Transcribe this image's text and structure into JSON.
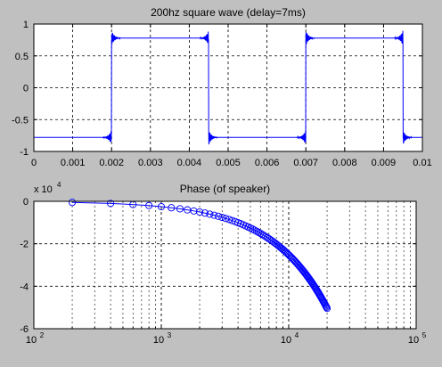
{
  "colors": {
    "figure_background": "#c0c0c0",
    "axes_background": "#ffffff",
    "line": "#0000ff",
    "axis": "#000000",
    "grid": "#000000"
  },
  "chart_data": [
    {
      "type": "line",
      "title": "200hz square wave (delay=7ms)",
      "xlabel": "",
      "ylabel": "",
      "xlim": [
        0,
        0.01
      ],
      "ylim": [
        -1,
        1
      ],
      "grid": true,
      "x_ticks": [
        "0",
        "0.001",
        "0.002",
        "0.003",
        "0.004",
        "0.005",
        "0.006",
        "0.007",
        "0.008",
        "0.009",
        "0.01"
      ],
      "y_ticks": [
        "1",
        "0.5",
        "0",
        "-0.5",
        "-1"
      ],
      "series": [
        {
          "x": [
            0,
            0.00195,
            0.00203,
            0.00445,
            0.00455,
            0.00695,
            0.00703,
            0.00945,
            0.00955,
            0.01
          ],
          "y": [
            -0.78,
            -0.78,
            0.78,
            0.78,
            -0.78,
            -0.78,
            0.78,
            0.78,
            -0.78,
            -0.78
          ],
          "edge_ringing_amplitude": 0.12
        }
      ]
    },
    {
      "type": "line",
      "title": "Phase (of speaker)",
      "xlabel": "",
      "ylabel": "",
      "x_scale": "log",
      "xlim": [
        100,
        100000
      ],
      "ylim": [
        -60000,
        0
      ],
      "y_exponent_label": "x 10",
      "y_exponent_power": "4",
      "grid": true,
      "marker": "circle",
      "x_ticks": [
        {
          "base": "10",
          "exp": "2"
        },
        {
          "base": "10",
          "exp": "3"
        },
        {
          "base": "10",
          "exp": "4"
        },
        {
          "base": "10",
          "exp": "5"
        }
      ],
      "y_ticks": [
        "0",
        "-2",
        "-4",
        "-6"
      ],
      "series": [
        {
          "f_start": 200,
          "f_step": 200,
          "f_end": 20000,
          "seconds_of_delay": 0.007,
          "note": "phase = -360 * f * 0.007 degrees"
        }
      ]
    }
  ]
}
